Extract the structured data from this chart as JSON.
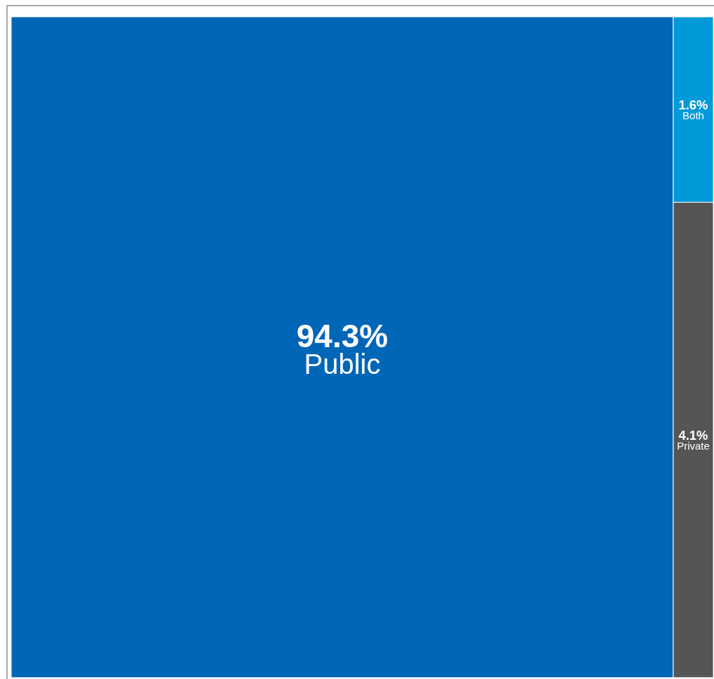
{
  "chart_data": {
    "type": "other",
    "categories": [
      "Public",
      "Both",
      "Private"
    ],
    "values": [
      94.3,
      1.6,
      4.1
    ],
    "value_labels": [
      "94.3%",
      "1.6%",
      "4.1%"
    ],
    "colors": [
      "#0066b8",
      "#0099d9",
      "#555555"
    ]
  }
}
